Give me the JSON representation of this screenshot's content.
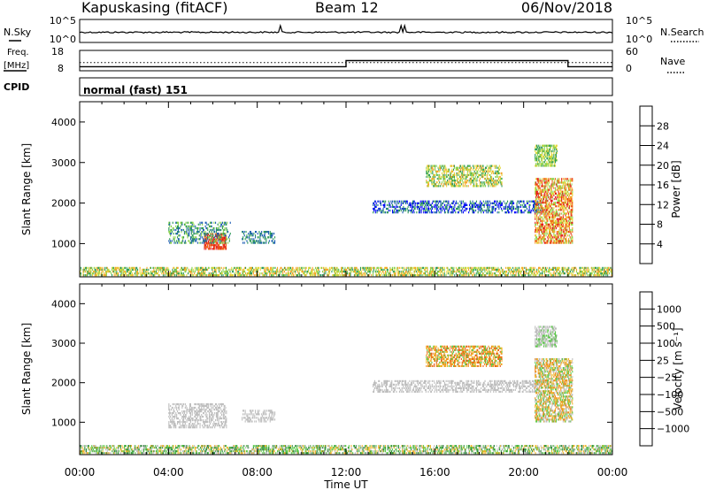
{
  "header": {
    "station": "Kapuskasing (fitACF)",
    "beam": "Beam 12",
    "date": "06/Nov/2018"
  },
  "strips": {
    "nsky": {
      "label": "N.Sky",
      "ticks": [
        "10^5",
        "10^0"
      ],
      "right_label": "N.Search",
      "right_ticks": [
        "10^5",
        "10^0"
      ]
    },
    "freq": {
      "label_line1": "Freq.",
      "label_line2": "[MHz]",
      "ticks": [
        "18",
        "8"
      ],
      "right_label": "Nave",
      "right_ticks": [
        "60",
        "0"
      ],
      "values_mhz": [
        [
          0,
          10.0
        ],
        [
          12.0,
          10.0
        ],
        [
          12.0,
          13.0
        ],
        [
          22.0,
          13.0
        ],
        [
          22.0,
          10.0
        ],
        [
          24.0,
          10.0
        ]
      ],
      "dotted_mhz": 12.0
    },
    "cpid": {
      "label": "CPID",
      "value": "normal (fast) 151"
    }
  },
  "chart_data": [
    {
      "type": "heatmap",
      "panel": "power",
      "ylabel": "Slant Range [km]",
      "xlabel": "Time UT",
      "xlim": [
        0,
        24
      ],
      "ylim": [
        180,
        4500
      ],
      "x_ticks": [
        "00:00",
        "04:00",
        "08:00",
        "12:00",
        "16:00",
        "20:00",
        "00:00"
      ],
      "y_ticks": [
        "1000",
        "2000",
        "3000",
        "4000"
      ],
      "colorbar": {
        "label": "Power [dB]",
        "ticks": [
          "4",
          "8",
          "12",
          "16",
          "20",
          "24",
          "28"
        ],
        "colors": [
          "#0000ff",
          "#1f5fb5",
          "#2e9b58",
          "#8cd24e",
          "#e4d83a",
          "#f5a32a",
          "#f26418",
          "#e21b1b"
        ]
      },
      "regions": [
        {
          "t": [
            0,
            24
          ],
          "r": [
            200,
            420
          ],
          "levels": [
            2,
            3,
            4,
            5
          ],
          "density": 0.55
        },
        {
          "t": [
            5.6,
            6.6
          ],
          "r": [
            850,
            1250
          ],
          "levels": [
            6,
            7
          ],
          "density": 0.75
        },
        {
          "t": [
            4.0,
            6.8
          ],
          "r": [
            1000,
            1500
          ],
          "levels": [
            1,
            2,
            3
          ],
          "density": 0.35
        },
        {
          "t": [
            7.3,
            8.8
          ],
          "r": [
            1000,
            1300
          ],
          "levels": [
            1,
            2
          ],
          "density": 0.45
        },
        {
          "t": [
            13.2,
            20.8
          ],
          "r": [
            1750,
            2050
          ],
          "levels": [
            0,
            1,
            2
          ],
          "density": 0.45
        },
        {
          "t": [
            15.6,
            19.0
          ],
          "r": [
            2400,
            2900
          ],
          "levels": [
            2,
            3,
            4,
            5
          ],
          "density": 0.5
        },
        {
          "t": [
            20.5,
            21.5
          ],
          "r": [
            2900,
            3400
          ],
          "levels": [
            2,
            3,
            4
          ],
          "density": 0.6
        },
        {
          "t": [
            20.5,
            22.2
          ],
          "r": [
            1000,
            2600
          ],
          "levels": [
            3,
            4,
            5,
            6,
            7
          ],
          "density": 0.6
        }
      ]
    },
    {
      "type": "heatmap",
      "panel": "velocity",
      "ylabel": "Slant Range [km]",
      "xlabel": "Time UT",
      "xlim": [
        0,
        24
      ],
      "ylim": [
        180,
        4500
      ],
      "x_ticks": [
        "00:00",
        "04:00",
        "08:00",
        "12:00",
        "16:00",
        "20:00",
        "00:00"
      ],
      "y_ticks": [
        "1000",
        "2000",
        "3000",
        "4000"
      ],
      "colorbar": {
        "label": "Velocity [m s⁻¹]",
        "ticks": [
          "1000",
          "500",
          "100",
          "25",
          "−25",
          "−100",
          "−500",
          "−1000"
        ],
        "colors": [
          "#1e3fd0",
          "#266b8c",
          "#2e8b3c",
          "#5cc94a",
          "#bfbfbf",
          "#f0b52a",
          "#ee8a1c",
          "#e85a14",
          "#e01515"
        ]
      },
      "regions": [
        {
          "t": [
            0,
            24
          ],
          "r": [
            200,
            420
          ],
          "levels": [
            2,
            3,
            4,
            5
          ],
          "density": 0.55
        },
        {
          "t": [
            4.0,
            6.6
          ],
          "r": [
            850,
            1450
          ],
          "levels": [
            4,
            4,
            4
          ],
          "density": 0.45
        },
        {
          "t": [
            7.3,
            8.8
          ],
          "r": [
            1000,
            1300
          ],
          "levels": [
            4
          ],
          "density": 0.45
        },
        {
          "t": [
            13.2,
            20.8
          ],
          "r": [
            1750,
            2050
          ],
          "levels": [
            4
          ],
          "density": 0.45
        },
        {
          "t": [
            15.6,
            19.0
          ],
          "r": [
            2400,
            2900
          ],
          "levels": [
            3,
            5,
            6,
            7
          ],
          "density": 0.55
        },
        {
          "t": [
            20.5,
            21.5
          ],
          "r": [
            2900,
            3400
          ],
          "levels": [
            4,
            4,
            3
          ],
          "density": 0.6
        },
        {
          "t": [
            20.5,
            22.2
          ],
          "r": [
            1000,
            2600
          ],
          "levels": [
            3,
            4,
            5,
            6
          ],
          "density": 0.6
        }
      ]
    }
  ]
}
